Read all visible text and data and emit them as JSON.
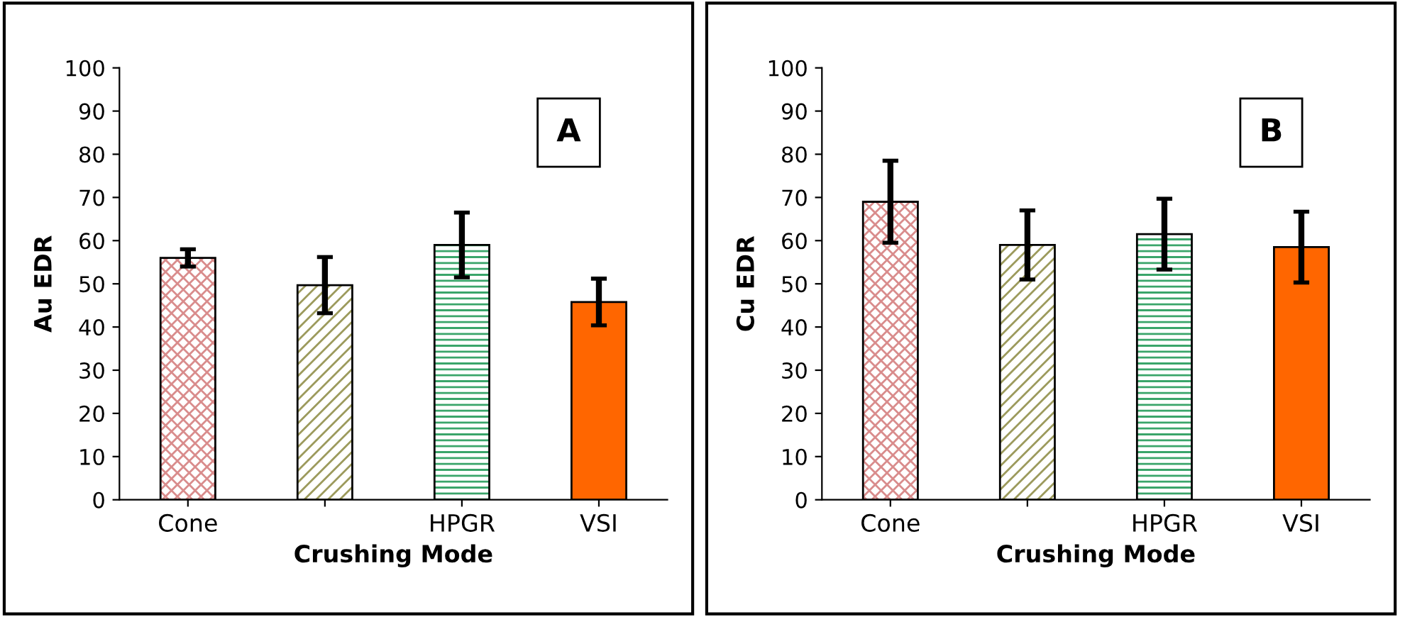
{
  "chart_data": [
    {
      "type": "bar",
      "categories": [
        "Cone",
        null,
        "HPGR",
        "VSI"
      ],
      "values": [
        56,
        49.7,
        59,
        45.8
      ],
      "errors": [
        2,
        6.5,
        7.5,
        5.4
      ],
      "colors": [
        "#d98c8c",
        "#9c9a5c",
        "#3aa56a",
        "#ff6600"
      ],
      "xlabel": "Crushing Mode",
      "ylabel": "Au EDR",
      "ylim": [
        0,
        100
      ],
      "yticks": [
        0,
        10,
        20,
        30,
        40,
        50,
        60,
        70,
        80,
        90,
        100
      ],
      "annotations": [
        "A"
      ],
      "grid": false,
      "legend": false
    },
    {
      "type": "bar",
      "categories": [
        "Cone",
        null,
        "HPGR",
        "VSI"
      ],
      "values": [
        69,
        59,
        61.5,
        58.5
      ],
      "errors": [
        9.5,
        8,
        8.2,
        8.2
      ],
      "colors": [
        "#d98c8c",
        "#9c9a5c",
        "#3aa56a",
        "#ff6600"
      ],
      "xlabel": "Crushing Mode",
      "ylabel": "Cu EDR",
      "ylim": [
        0,
        100
      ],
      "yticks": [
        0,
        10,
        20,
        30,
        40,
        50,
        60,
        70,
        80,
        90,
        100
      ],
      "annotations": [
        "B"
      ],
      "grid": false,
      "legend": false
    }
  ]
}
